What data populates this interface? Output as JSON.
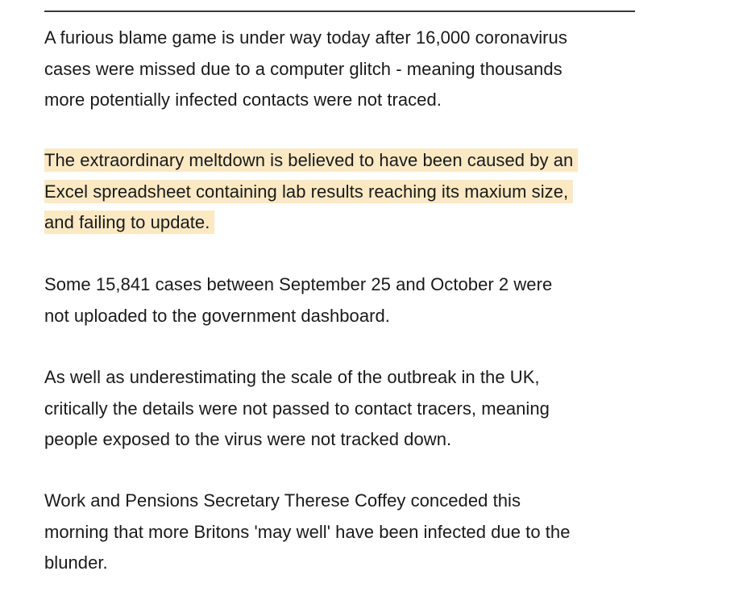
{
  "article": {
    "paragraphs": [
      {
        "lines": [
          "A furious blame game is under way today after 16,000 coronavirus",
          "cases were missed due to a computer glitch - meaning thousands",
          "more potentially infected contacts were not traced."
        ],
        "highlighted": false
      },
      {
        "lines": [
          "The extraordinary meltdown is believed to have been caused by an",
          "Excel spreadsheet containing lab results reaching its maxium size,",
          "and failing to update."
        ],
        "highlighted": true,
        "highlight_color": "#fbe9c4"
      },
      {
        "lines": [
          "Some 15,841 cases between September 25 and October 2 were",
          "not uploaded to the government dashboard."
        ],
        "highlighted": false
      },
      {
        "lines": [
          "As well as underestimating the scale of the outbreak in the UK,",
          "critically the details were not passed to contact tracers, meaning",
          "people exposed to the virus were not tracked down."
        ],
        "highlighted": false
      },
      {
        "lines": [
          "Work and Pensions Secretary Therese Coffey conceded this",
          "morning that more Britons 'may well' have been infected due to the",
          "blunder."
        ],
        "highlighted": false
      }
    ]
  }
}
